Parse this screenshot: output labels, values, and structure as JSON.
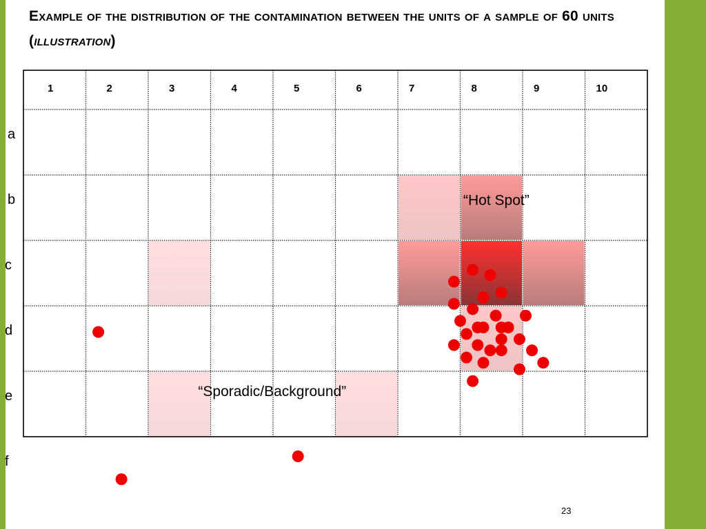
{
  "slide": {
    "title_main": "Example of the distribution of the contamination between the units of a sample of 60 units",
    "title_paren_open": " (",
    "title_emph": "illustration",
    "title_paren_close": ")",
    "page_number": "23",
    "accent_color": "#86ad35",
    "dot_color": "#ee0000"
  },
  "grid": {
    "columns": [
      "1",
      "2",
      "3",
      "4",
      "5",
      "6",
      "7",
      "8",
      "9",
      "10"
    ],
    "rows": [
      "a",
      "b",
      "c",
      "d",
      "e",
      "f"
    ],
    "annotations": [
      {
        "text": "“Hot Spot”",
        "col": 8.05,
        "row": 1.5
      },
      {
        "text": "“Sporadic/Background”",
        "col": 3.8,
        "row": 4.42
      }
    ],
    "shaded_cells": [
      {
        "col": 7,
        "row": "b",
        "intensity": "medium"
      },
      {
        "col": 8,
        "row": "b",
        "intensity": "high"
      },
      {
        "col": 7,
        "row": "c",
        "intensity": "high"
      },
      {
        "col": 8,
        "row": "c",
        "intensity": "very-high"
      },
      {
        "col": 9,
        "row": "c",
        "intensity": "high"
      },
      {
        "col": 8,
        "row": "d",
        "intensity": "medium"
      },
      {
        "col": 3,
        "row": "c",
        "intensity": "light"
      },
      {
        "col": 3,
        "row": "e",
        "intensity": "light"
      },
      {
        "col": 6,
        "row": "e",
        "intensity": "light"
      }
    ],
    "dots": [
      {
        "col": 8.2,
        "row": 2.45
      },
      {
        "col": 8.48,
        "row": 2.53
      },
      {
        "col": 7.9,
        "row": 2.63
      },
      {
        "col": 8.66,
        "row": 2.8
      },
      {
        "col": 8.37,
        "row": 2.87
      },
      {
        "col": 7.9,
        "row": 2.97
      },
      {
        "col": 8.2,
        "row": 3.05
      },
      {
        "col": 8.57,
        "row": 3.15
      },
      {
        "col": 9.05,
        "row": 3.15
      },
      {
        "col": 8.0,
        "row": 3.23
      },
      {
        "col": 8.28,
        "row": 3.33
      },
      {
        "col": 8.37,
        "row": 3.33
      },
      {
        "col": 8.66,
        "row": 3.33
      },
      {
        "col": 8.77,
        "row": 3.33
      },
      {
        "col": 8.1,
        "row": 3.43
      },
      {
        "col": 8.66,
        "row": 3.51
      },
      {
        "col": 8.95,
        "row": 3.51
      },
      {
        "col": 7.9,
        "row": 3.6
      },
      {
        "col": 8.28,
        "row": 3.6
      },
      {
        "col": 8.48,
        "row": 3.68
      },
      {
        "col": 8.66,
        "row": 3.68
      },
      {
        "col": 9.15,
        "row": 3.68
      },
      {
        "col": 8.1,
        "row": 3.79
      },
      {
        "col": 8.37,
        "row": 3.87
      },
      {
        "col": 9.33,
        "row": 3.87
      },
      {
        "col": 8.95,
        "row": 3.97
      },
      {
        "col": 8.2,
        "row": 4.15
      },
      {
        "col": 2.2,
        "row": 3.4
      },
      {
        "col": 5.4,
        "row": 5.3
      },
      {
        "col": 2.57,
        "row": 5.65
      }
    ]
  }
}
